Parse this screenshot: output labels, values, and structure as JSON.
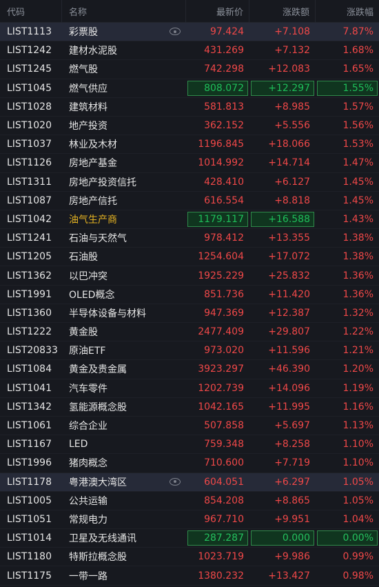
{
  "header": {
    "code": "代码",
    "name": "名称",
    "price": "最新价",
    "change": "涨跌额",
    "pct": "涨跌幅"
  },
  "rows": [
    {
      "code": "LIST1113",
      "name": "彩票股",
      "price": "97.424",
      "change": "+7.108",
      "pct": "7.87%"
    },
    {
      "code": "LIST1242",
      "name": "建材水泥股",
      "price": "431.269",
      "change": "+7.132",
      "pct": "1.68%"
    },
    {
      "code": "LIST1245",
      "name": "燃气股",
      "price": "742.298",
      "change": "+12.083",
      "pct": "1.65%"
    },
    {
      "code": "LIST1045",
      "name": "燃气供应",
      "price": "808.072",
      "change": "+12.297",
      "pct": "1.55%"
    },
    {
      "code": "LIST1028",
      "name": "建筑材料",
      "price": "581.813",
      "change": "+8.985",
      "pct": "1.57%"
    },
    {
      "code": "LIST1020",
      "name": "地产投资",
      "price": "362.152",
      "change": "+5.556",
      "pct": "1.56%"
    },
    {
      "code": "LIST1037",
      "name": "林业及木材",
      "price": "1196.845",
      "change": "+18.066",
      "pct": "1.53%"
    },
    {
      "code": "LIST1126",
      "name": "房地产基金",
      "price": "1014.992",
      "change": "+14.714",
      "pct": "1.47%"
    },
    {
      "code": "LIST1311",
      "name": "房地产投资信托",
      "price": "428.410",
      "change": "+6.127",
      "pct": "1.45%"
    },
    {
      "code": "LIST1087",
      "name": "房地产信托",
      "price": "616.554",
      "change": "+8.818",
      "pct": "1.45%"
    },
    {
      "code": "LIST1042",
      "name": "油气生产商",
      "price": "1179.117",
      "change": "+16.588",
      "pct": "1.43%"
    },
    {
      "code": "LIST1241",
      "name": "石油与天然气",
      "price": "978.412",
      "change": "+13.355",
      "pct": "1.38%"
    },
    {
      "code": "LIST1205",
      "name": "石油股",
      "price": "1254.604",
      "change": "+17.072",
      "pct": "1.38%"
    },
    {
      "code": "LIST1362",
      "name": "以巴冲突",
      "price": "1925.229",
      "change": "+25.832",
      "pct": "1.36%"
    },
    {
      "code": "LIST1991",
      "name": "OLED概念",
      "price": "851.736",
      "change": "+11.420",
      "pct": "1.36%"
    },
    {
      "code": "LIST1360",
      "name": "半导体设备与材料",
      "price": "947.369",
      "change": "+12.387",
      "pct": "1.32%"
    },
    {
      "code": "LIST1222",
      "name": "黄金股",
      "price": "2477.409",
      "change": "+29.807",
      "pct": "1.22%"
    },
    {
      "code": "LIST20833",
      "name": "原油ETF",
      "price": "973.020",
      "change": "+11.596",
      "pct": "1.21%"
    },
    {
      "code": "LIST1084",
      "name": "黄金及贵金属",
      "price": "3923.297",
      "change": "+46.390",
      "pct": "1.20%"
    },
    {
      "code": "LIST1041",
      "name": "汽车零件",
      "price": "1202.739",
      "change": "+14.096",
      "pct": "1.19%"
    },
    {
      "code": "LIST1342",
      "name": "氢能源概念股",
      "price": "1042.165",
      "change": "+11.995",
      "pct": "1.16%"
    },
    {
      "code": "LIST1061",
      "name": "综合企业",
      "price": "507.858",
      "change": "+5.697",
      "pct": "1.13%"
    },
    {
      "code": "LIST1167",
      "name": "LED",
      "price": "759.348",
      "change": "+8.258",
      "pct": "1.10%"
    },
    {
      "code": "LIST1996",
      "name": "猪肉概念",
      "price": "710.600",
      "change": "+7.719",
      "pct": "1.10%"
    },
    {
      "code": "LIST1178",
      "name": "粤港澳大湾区",
      "price": "604.051",
      "change": "+6.297",
      "pct": "1.05%"
    },
    {
      "code": "LIST1005",
      "name": "公共运输",
      "price": "854.208",
      "change": "+8.865",
      "pct": "1.05%"
    },
    {
      "code": "LIST1051",
      "name": "常规电力",
      "price": "967.710",
      "change": "+9.951",
      "pct": "1.04%"
    },
    {
      "code": "LIST1014",
      "name": "卫星及无线通讯",
      "price": "287.287",
      "change": "0.000",
      "pct": "0.00%"
    },
    {
      "code": "LIST1180",
      "name": "特斯拉概念股",
      "price": "1023.719",
      "change": "+9.986",
      "pct": "0.99%"
    },
    {
      "code": "LIST1175",
      "name": "一带一路",
      "price": "1380.232",
      "change": "+13.427",
      "pct": "0.98%"
    }
  ]
}
